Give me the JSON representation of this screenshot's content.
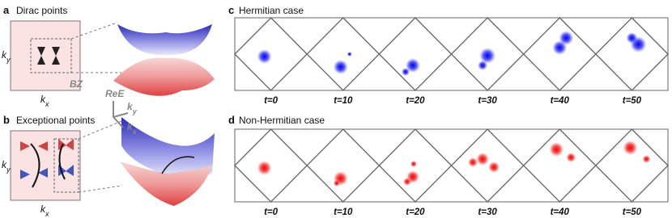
{
  "panel_a": {
    "label": "a",
    "title": "Dirac points",
    "ky": {
      "k": "k",
      "sub": "y"
    },
    "kx": {
      "k": "k",
      "sub": "x"
    },
    "bz": "BZ"
  },
  "panel_b": {
    "label": "b",
    "title": "Exceptional points",
    "ky": {
      "k": "k",
      "sub": "y"
    },
    "kx": {
      "k": "k",
      "sub": "x"
    }
  },
  "axes": {
    "z": "ReE",
    "y": {
      "k": "k",
      "sub": "y"
    },
    "x": {
      "k": "k",
      "sub": "x"
    }
  },
  "panel_c": {
    "label": "c",
    "title": "Hermitian case",
    "times": [
      "t=0",
      "t=10",
      "t=20",
      "t=30",
      "t=40",
      "t=50"
    ]
  },
  "panel_d": {
    "label": "d",
    "title": "Non-Hermitian case",
    "times": [
      "t=0",
      "t=10",
      "t=20",
      "t=30",
      "t=40",
      "t=50"
    ]
  }
}
